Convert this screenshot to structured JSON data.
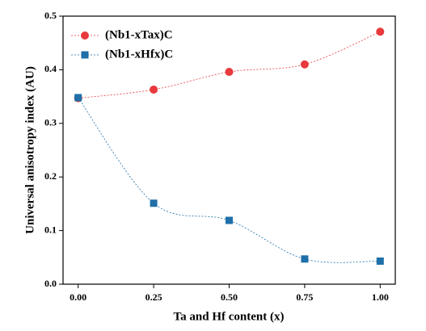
{
  "chart_data": {
    "type": "line",
    "smooth": true,
    "legend": "upper left",
    "xlabel": "Ta and Hf content (x)",
    "ylabel": "Universal anisotropy index (AU)",
    "x": [
      0,
      0.25,
      0.5,
      0.75,
      1
    ],
    "series": [
      {
        "name": "(Nb1-xTax)C",
        "color": "#e8393c",
        "marker": "circle",
        "values": [
          0.347,
          0.363,
          0.396,
          0.41,
          0.471
        ]
      },
      {
        "name": "(Nb1-xHfx)C",
        "color": "#1f6fa8",
        "marker": "square",
        "values": [
          0.348,
          0.151,
          0.119,
          0.047,
          0.043
        ]
      }
    ],
    "xlim": [
      -0.05,
      1.05
    ],
    "xticks": [
      {
        "value": 0,
        "label": "0.00"
      },
      {
        "value": 0.25,
        "label": "0.25"
      },
      {
        "value": 0.5,
        "label": "0.50"
      },
      {
        "value": 0.75,
        "label": "0.75"
      },
      {
        "value": 1,
        "label": "1.00"
      }
    ],
    "ylim": [
      0,
      0.5
    ],
    "yticks": [
      {
        "value": 0,
        "label": "0.0"
      },
      0.1,
      0.2,
      0.3,
      0.4,
      0.5
    ]
  }
}
